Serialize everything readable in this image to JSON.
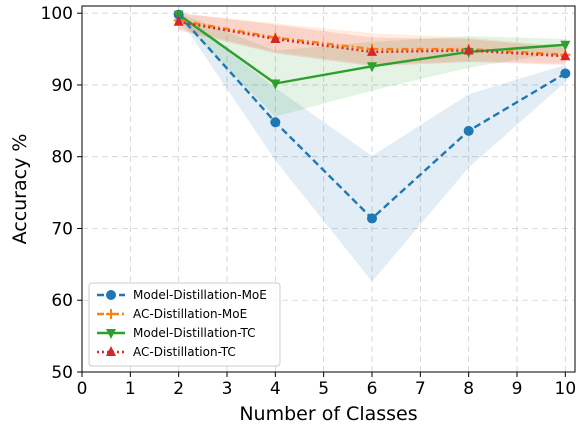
{
  "chart_data": {
    "type": "line",
    "title": "",
    "xlabel": "Number of Classes",
    "ylabel": "Accuracy %",
    "xlim": [
      0,
      10.2
    ],
    "ylim": [
      50,
      101
    ],
    "xticks": [
      "0",
      "1",
      "2",
      "3",
      "4",
      "5",
      "6",
      "7",
      "8",
      "9",
      "10"
    ],
    "yticks": [
      "50",
      "60",
      "70",
      "80",
      "90",
      "100"
    ],
    "grid": true,
    "legend_position": "lower-left",
    "x": [
      2,
      4,
      6,
      8,
      10
    ],
    "series": [
      {
        "name": "Model-Distillation-MoE",
        "values": [
          99.8,
          84.8,
          71.4,
          83.6,
          91.6
        ],
        "lower": [
          99.4,
          79.5,
          62.6,
          78.5,
          90.4
        ],
        "upper": [
          100.0,
          89.6,
          80.1,
          88.7,
          92.8
        ],
        "color": "#1f77b4",
        "linestyle": "dashed",
        "marker": "circle"
      },
      {
        "name": "AC-Distillation-MoE",
        "values": [
          99.0,
          96.6,
          95.0,
          95.0,
          94.2
        ],
        "lower": [
          97.8,
          94.6,
          92.8,
          93.3,
          93.0
        ],
        "upper": [
          100.0,
          98.6,
          97.2,
          96.6,
          95.4
        ],
        "color": "#ff7f0e",
        "linestyle": "dashdot",
        "marker": "plus"
      },
      {
        "name": "Model-Distillation-TC",
        "values": [
          99.8,
          90.2,
          92.6,
          94.6,
          95.6
        ],
        "lower": [
          99.2,
          85.6,
          89.2,
          92.4,
          94.6
        ],
        "upper": [
          100.0,
          94.8,
          96.0,
          96.8,
          96.4
        ],
        "color": "#2ca02c",
        "linestyle": "solid",
        "marker": "triangle-down"
      },
      {
        "name": "AC-Distillation-TC",
        "values": [
          98.8,
          96.4,
          94.6,
          94.8,
          94.0
        ],
        "lower": [
          97.6,
          94.4,
          92.6,
          93.2,
          92.8
        ],
        "upper": [
          100.0,
          98.4,
          96.6,
          96.4,
          95.2
        ],
        "color": "#d62728",
        "linestyle": "dotted",
        "marker": "triangle-up"
      }
    ]
  }
}
